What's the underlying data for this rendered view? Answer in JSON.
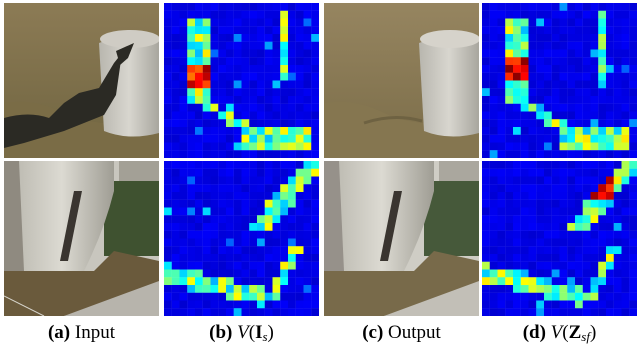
{
  "figure": {
    "columns": [
      {
        "letter": "(a)",
        "label": "Input",
        "kind": "photo"
      },
      {
        "letter": "(b)",
        "label": "",
        "kind": "heatmap",
        "math": {
          "fn": "V",
          "sym": "I",
          "sub": "s"
        }
      },
      {
        "letter": "(c)",
        "label": "Output",
        "kind": "photo"
      },
      {
        "letter": "(d)",
        "label": "",
        "kind": "heatmap",
        "math": {
          "fn": "V",
          "sym": "Z",
          "sub": "sf"
        }
      }
    ],
    "colormap": {
      "low": "#00008f",
      "mid": "#00ffff",
      "high": "#8f0000"
    }
  }
}
